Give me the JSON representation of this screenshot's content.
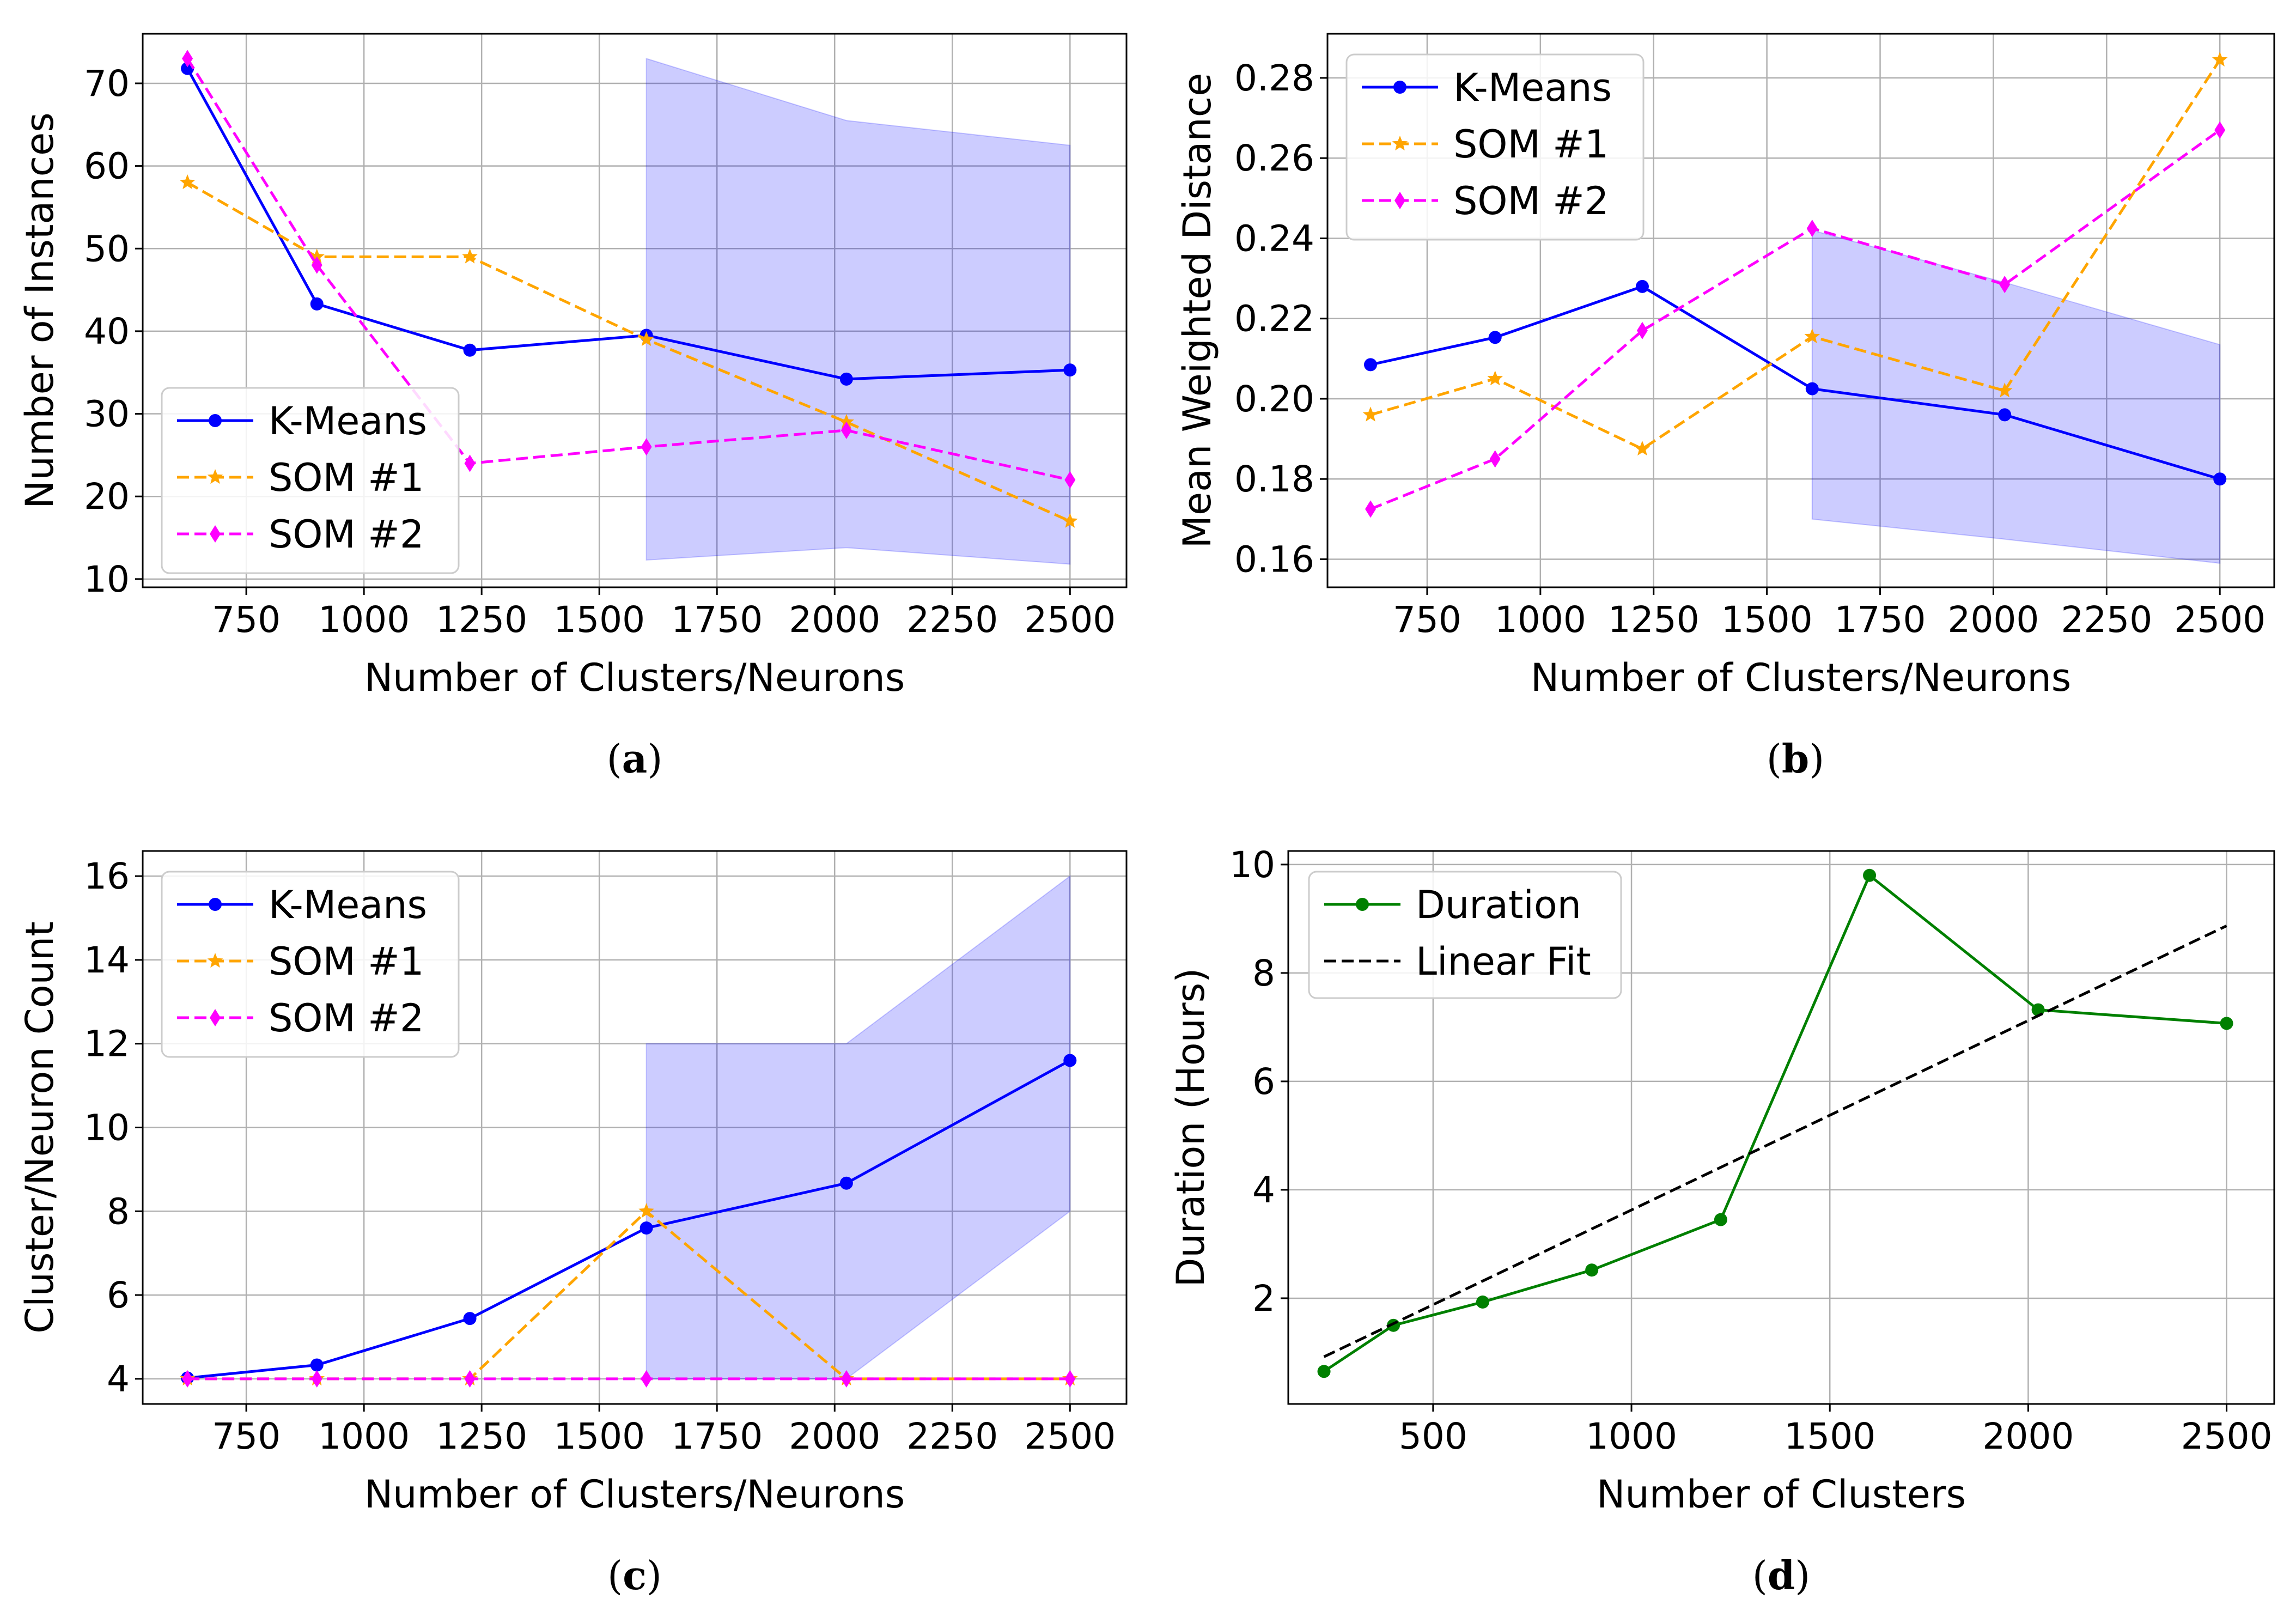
{
  "colors": {
    "kmeans": "#0000ff",
    "som1": "#ffa500",
    "som2": "#ff00ff",
    "band": "#0000ff",
    "duration": "#008000",
    "fit": "#000000",
    "grid": "#b0b0b0"
  },
  "chart_data": [
    {
      "id": "a",
      "type": "line",
      "caption": "(a)",
      "caption_letter": "a",
      "xlabel": "Number of Clusters/Neurons",
      "ylabel": "Number of Instances",
      "xlim": [
        530,
        2620
      ],
      "ylim": [
        9,
        76
      ],
      "xticks": [
        750,
        1000,
        1250,
        1500,
        1750,
        2000,
        2250,
        2500
      ],
      "xtick_labels": [
        "750",
        "1000",
        "1250",
        "1500",
        "1750",
        "2000",
        "2250",
        "2500"
      ],
      "yticks": [
        10,
        20,
        30,
        40,
        50,
        60,
        70
      ],
      "ytick_labels": [
        "10",
        "20",
        "30",
        "40",
        "50",
        "60",
        "70"
      ],
      "legend_loc": "lower-left",
      "band": {
        "x": [
          1600,
          2025,
          2500
        ],
        "upper": [
          73,
          65.5,
          62.5
        ],
        "lower": [
          12.3,
          13.8,
          11.8
        ]
      },
      "series": [
        {
          "name": "K-Means",
          "key": "kmeans",
          "style": "solid",
          "marker": "dot",
          "x": [
            625,
            900,
            1225,
            1600,
            2025,
            2500
          ],
          "values": [
            71.8,
            43.3,
            37.7,
            39.5,
            34.2,
            35.3
          ]
        },
        {
          "name": "SOM #1",
          "key": "som1",
          "style": "dashed",
          "marker": "star",
          "x": [
            625,
            900,
            1225,
            1600,
            2025,
            2500
          ],
          "values": [
            58,
            49,
            49,
            39,
            29,
            17
          ]
        },
        {
          "name": "SOM #2",
          "key": "som2",
          "style": "dashed",
          "marker": "diamond",
          "x": [
            625,
            900,
            1225,
            1600,
            2025,
            2500
          ],
          "values": [
            73,
            48,
            24,
            26,
            28,
            22
          ]
        }
      ]
    },
    {
      "id": "b",
      "type": "line",
      "caption": "(b)",
      "caption_letter": "b",
      "xlabel": "Number of Clusters/Neurons",
      "ylabel": "Mean Weighted Distance",
      "xlim": [
        530,
        2620
      ],
      "ylim": [
        0.153,
        0.291
      ],
      "xticks": [
        750,
        1000,
        1250,
        1500,
        1750,
        2000,
        2250,
        2500
      ],
      "xtick_labels": [
        "750",
        "1000",
        "1250",
        "1500",
        "1750",
        "2000",
        "2250",
        "2500"
      ],
      "yticks": [
        0.16,
        0.18,
        0.2,
        0.22,
        0.24,
        0.26,
        0.28
      ],
      "ytick_labels": [
        "0.16",
        "0.18",
        "0.20",
        "0.22",
        "0.24",
        "0.26",
        "0.28"
      ],
      "legend_loc": "upper-left",
      "band": {
        "x": [
          1600,
          2025,
          2500
        ],
        "upper": [
          0.242,
          0.229,
          0.2135
        ],
        "lower": [
          0.17,
          0.165,
          0.159
        ]
      },
      "series": [
        {
          "name": "K-Means",
          "key": "kmeans",
          "style": "solid",
          "marker": "dot",
          "x": [
            625,
            900,
            1225,
            1600,
            2025,
            2500
          ],
          "values": [
            0.2085,
            0.2153,
            0.228,
            0.2025,
            0.196,
            0.18
          ]
        },
        {
          "name": "SOM #1",
          "key": "som1",
          "style": "dashed",
          "marker": "star",
          "x": [
            625,
            900,
            1225,
            1600,
            2025,
            2500
          ],
          "values": [
            0.196,
            0.205,
            0.1875,
            0.2155,
            0.202,
            0.2845
          ]
        },
        {
          "name": "SOM #2",
          "key": "som2",
          "style": "dashed",
          "marker": "diamond",
          "x": [
            625,
            900,
            1225,
            1600,
            2025,
            2500
          ],
          "values": [
            0.1725,
            0.185,
            0.217,
            0.2425,
            0.2285,
            0.267
          ]
        }
      ]
    },
    {
      "id": "c",
      "type": "line",
      "caption": "(c)",
      "caption_letter": "c",
      "xlabel": "Number of Clusters/Neurons",
      "ylabel": "Cluster/Neuron Count",
      "xlim": [
        530,
        2620
      ],
      "ylim": [
        3.4,
        16.6
      ],
      "xticks": [
        750,
        1000,
        1250,
        1500,
        1750,
        2000,
        2250,
        2500
      ],
      "xtick_labels": [
        "750",
        "1000",
        "1250",
        "1500",
        "1750",
        "2000",
        "2250",
        "2500"
      ],
      "yticks": [
        4,
        6,
        8,
        10,
        12,
        14,
        16
      ],
      "ytick_labels": [
        "4",
        "6",
        "8",
        "10",
        "12",
        "14",
        "16"
      ],
      "legend_loc": "upper-left",
      "band": {
        "x": [
          1600,
          2025,
          2500
        ],
        "upper": [
          12,
          12,
          16
        ],
        "lower": [
          4,
          4,
          8
        ]
      },
      "series": [
        {
          "name": "K-Means",
          "key": "kmeans",
          "style": "solid",
          "marker": "dot",
          "x": [
            625,
            900,
            1225,
            1600,
            2025,
            2500
          ],
          "values": [
            4.02,
            4.33,
            5.44,
            7.6,
            8.67,
            11.6
          ]
        },
        {
          "name": "SOM #1",
          "key": "som1",
          "style": "dashed",
          "marker": "star",
          "x": [
            625,
            900,
            1225,
            1600,
            2025,
            2500
          ],
          "values": [
            4,
            4,
            4,
            8,
            4,
            4
          ]
        },
        {
          "name": "SOM #2",
          "key": "som2",
          "style": "dashed",
          "marker": "diamond",
          "x": [
            625,
            900,
            1225,
            1600,
            2025,
            2500
          ],
          "values": [
            4,
            4,
            4,
            4,
            4,
            4
          ]
        }
      ]
    },
    {
      "id": "d",
      "type": "line",
      "caption": "(d)",
      "caption_letter": "d",
      "xlabel": "Number of Clusters",
      "ylabel": "Duration (Hours)",
      "xlim": [
        135,
        2620
      ],
      "ylim": [
        0.05,
        10.25
      ],
      "xticks": [
        500,
        1000,
        1500,
        2000,
        2500
      ],
      "xtick_labels": [
        "500",
        "1000",
        "1500",
        "2000",
        "2500"
      ],
      "yticks": [
        2,
        4,
        6,
        8,
        10
      ],
      "ytick_labels": [
        "2",
        "4",
        "6",
        "8",
        "10"
      ],
      "legend_loc": "upper-left",
      "series": [
        {
          "name": "Duration",
          "key": "duration",
          "style": "solid",
          "marker": "dot",
          "x": [
            225,
            400,
            625,
            900,
            1225,
            1600,
            2025,
            2500
          ],
          "values": [
            0.65,
            1.5,
            1.93,
            2.52,
            3.45,
            9.8,
            7.32,
            7.07
          ]
        },
        {
          "name": "Linear Fit",
          "key": "fit",
          "style": "dashed",
          "marker": "none",
          "x": [
            225,
            2500
          ],
          "values": [
            0.92,
            8.87
          ]
        }
      ]
    }
  ]
}
